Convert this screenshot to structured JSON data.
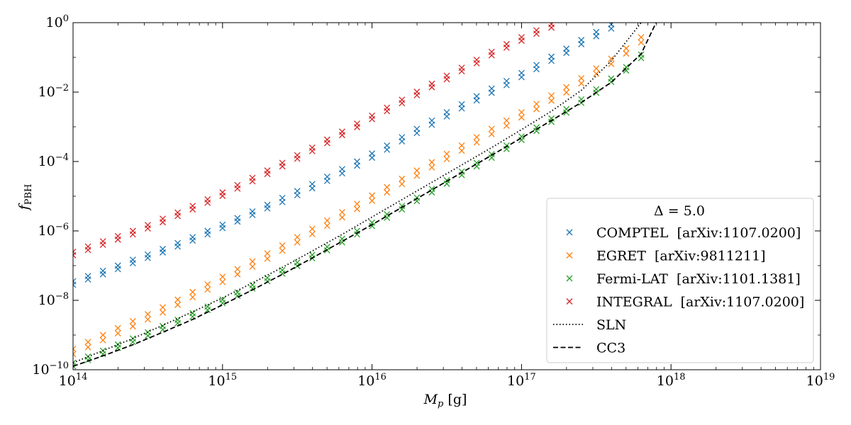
{
  "chart_data": {
    "type": "scatter",
    "xlabel": "M_p [g]",
    "ylabel": "f_PBH",
    "xscale": "log",
    "yscale": "log",
    "xlim": [
      100000000000000.0,
      1e+19
    ],
    "ylim": [
      1e-10,
      1
    ],
    "xticks": [
      {
        "value": 100000000000000.0,
        "base": "10",
        "exp": "14"
      },
      {
        "value": 1000000000000000.0,
        "base": "10",
        "exp": "15"
      },
      {
        "value": 1e+16,
        "base": "10",
        "exp": "16"
      },
      {
        "value": 1e+17,
        "base": "10",
        "exp": "17"
      },
      {
        "value": 1e+18,
        "base": "10",
        "exp": "18"
      },
      {
        "value": 1e+19,
        "base": "10",
        "exp": "19"
      }
    ],
    "yticks": [
      {
        "value": 1e-10,
        "base": "10",
        "exp": "−10"
      },
      {
        "value": 1e-08,
        "base": "10",
        "exp": "−8"
      },
      {
        "value": 1e-06,
        "base": "10",
        "exp": "−6"
      },
      {
        "value": 0.0001,
        "base": "10",
        "exp": "−4"
      },
      {
        "value": 0.01,
        "base": "10",
        "exp": "−2"
      },
      {
        "value": 1,
        "base": "10",
        "exp": "0"
      }
    ],
    "grid": false,
    "legend": {
      "placement": "lower-right",
      "title": "Δ = 5.0",
      "entries": [
        {
          "label": "COMPTEL  [arXiv:1107.0200]",
          "marker": "x",
          "color": "#1f77b4"
        },
        {
          "label": "EGRET  [arXiv:9811211]",
          "marker": "x",
          "color": "#ff7f0e"
        },
        {
          "label": "Fermi-LAT  [arXiv:1101.1381]",
          "marker": "x",
          "color": "#2ca02c"
        },
        {
          "label": "INTEGRAL  [arXiv:1107.0200]",
          "marker": "x",
          "color": "#d62728"
        },
        {
          "label": "SLN",
          "line": "dotted",
          "color": "#000000"
        },
        {
          "label": "CC3",
          "line": "dashed",
          "color": "#000000"
        }
      ]
    },
    "scatter_x_log10": [
      14.0,
      14.1,
      14.2,
      14.3,
      14.4,
      14.5,
      14.6,
      14.7,
      14.8,
      14.9,
      15.0,
      15.1,
      15.2,
      15.3,
      15.4,
      15.5,
      15.6,
      15.7,
      15.8,
      15.9,
      16.0,
      16.1,
      16.2,
      16.3,
      16.4,
      16.5,
      16.6,
      16.7,
      16.8,
      16.9,
      17.0,
      17.1,
      17.2,
      17.3,
      17.4,
      17.5,
      17.6,
      17.7,
      17.8
    ],
    "series": [
      {
        "name": "COMPTEL",
        "color": "#1f77b4",
        "y_log10_upper": [
          -7.45,
          -7.3,
          -7.15,
          -7.0,
          -6.83,
          -6.68,
          -6.52,
          -6.35,
          -6.18,
          -6.0,
          -5.82,
          -5.63,
          -5.44,
          -5.25,
          -5.05,
          -4.85,
          -4.65,
          -4.44,
          -4.22,
          -4.0,
          -3.77,
          -3.54,
          -3.3,
          -3.06,
          -2.82,
          -2.58,
          -2.35,
          -2.12,
          -1.9,
          -1.68,
          -1.45,
          -1.22,
          -0.98,
          -0.75,
          -0.5,
          -0.27,
          -0.05,
          null,
          null
        ],
        "y_log10_lower": [
          -7.55,
          -7.4,
          -7.25,
          -7.1,
          -6.93,
          -6.78,
          -6.62,
          -6.45,
          -6.28,
          -6.1,
          -5.92,
          -5.73,
          -5.54,
          -5.35,
          -5.17,
          -4.97,
          -4.77,
          -4.56,
          -4.34,
          -4.12,
          -3.89,
          -3.66,
          -3.42,
          -3.18,
          -2.94,
          -2.7,
          -2.47,
          -2.24,
          -2.02,
          -1.8,
          -1.57,
          -1.34,
          -1.1,
          -0.87,
          -0.62,
          -0.39,
          -0.17,
          null,
          null
        ]
      },
      {
        "name": "EGRET",
        "color": "#ff7f0e",
        "y_log10_upper": [
          -9.4,
          -9.2,
          -9.0,
          -8.8,
          -8.6,
          -8.4,
          -8.2,
          -7.98,
          -7.76,
          -7.54,
          -7.32,
          -7.1,
          -6.88,
          -6.65,
          -6.42,
          -6.18,
          -5.94,
          -5.7,
          -5.46,
          -5.22,
          -4.98,
          -4.74,
          -4.5,
          -4.26,
          -4.02,
          -3.78,
          -3.54,
          -3.3,
          -3.06,
          -2.82,
          -2.58,
          -2.34,
          -2.1,
          -1.86,
          -1.6,
          -1.32,
          -1.04,
          -0.74,
          -0.42
        ],
        "y_log10_lower": [
          -9.55,
          -9.35,
          -9.15,
          -8.95,
          -8.75,
          -8.55,
          -8.35,
          -8.13,
          -7.91,
          -7.69,
          -7.47,
          -7.25,
          -7.03,
          -6.8,
          -6.57,
          -6.33,
          -6.09,
          -5.85,
          -5.61,
          -5.37,
          -5.13,
          -4.89,
          -4.65,
          -4.41,
          -4.17,
          -3.93,
          -3.69,
          -3.45,
          -3.21,
          -2.97,
          -2.73,
          -2.49,
          -2.25,
          -2.01,
          -1.75,
          -1.47,
          -1.19,
          -0.89,
          -0.57
        ]
      },
      {
        "name": "Fermi-LAT",
        "color": "#2ca02c",
        "y_log10_upper": [
          -9.8,
          -9.62,
          -9.45,
          -9.27,
          -9.1,
          -8.92,
          -8.74,
          -8.56,
          -8.37,
          -8.18,
          -7.98,
          -7.77,
          -7.56,
          -7.35,
          -7.13,
          -6.91,
          -6.69,
          -6.46,
          -6.23,
          -6.0,
          -5.76,
          -5.52,
          -5.28,
          -5.04,
          -4.79,
          -4.54,
          -4.29,
          -4.04,
          -3.79,
          -3.54,
          -3.28,
          -3.02,
          -2.76,
          -2.49,
          -2.21,
          -1.92,
          -1.61,
          -1.28,
          -0.92
        ],
        "y_log10_lower": [
          -9.9,
          -9.72,
          -9.55,
          -9.37,
          -9.2,
          -9.02,
          -8.84,
          -8.66,
          -8.47,
          -8.28,
          -8.08,
          -7.87,
          -7.66,
          -7.45,
          -7.23,
          -7.01,
          -6.79,
          -6.56,
          -6.33,
          -6.1,
          -5.86,
          -5.62,
          -5.38,
          -5.14,
          -4.89,
          -4.64,
          -4.39,
          -4.14,
          -3.89,
          -3.64,
          -3.38,
          -3.12,
          -2.86,
          -2.59,
          -2.31,
          -2.02,
          -1.71,
          -1.38,
          -1.02
        ]
      },
      {
        "name": "INTEGRAL",
        "color": "#d62728",
        "y_log10_upper": [
          -6.6,
          -6.45,
          -6.3,
          -6.15,
          -6.0,
          -5.83,
          -5.65,
          -5.47,
          -5.28,
          -5.09,
          -4.89,
          -4.68,
          -4.47,
          -4.26,
          -4.04,
          -3.82,
          -3.6,
          -3.37,
          -3.14,
          -2.91,
          -2.68,
          -2.45,
          -2.22,
          -1.99,
          -1.76,
          -1.53,
          -1.3,
          -1.07,
          -0.84,
          -0.62,
          -0.42,
          -0.22,
          -0.04,
          null,
          null,
          null,
          null,
          null,
          null
        ],
        "y_log10_lower": [
          -6.7,
          -6.55,
          -6.4,
          -6.25,
          -6.1,
          -5.93,
          -5.75,
          -5.57,
          -5.38,
          -5.19,
          -4.99,
          -4.78,
          -4.57,
          -4.36,
          -4.14,
          -3.92,
          -3.7,
          -3.47,
          -3.24,
          -3.01,
          -2.78,
          -2.55,
          -2.32,
          -2.09,
          -1.86,
          -1.63,
          -1.4,
          -1.17,
          -0.94,
          -0.72,
          -0.52,
          -0.32,
          -0.14,
          null,
          null,
          null,
          null,
          null,
          null
        ]
      }
    ],
    "lines": [
      {
        "name": "SLN",
        "style": "dotted",
        "color": "#000000",
        "x_log10": [
          14.0,
          14.2,
          14.4,
          14.6,
          14.8,
          15.0,
          15.2,
          15.4,
          15.6,
          15.8,
          16.0,
          16.2,
          16.4,
          16.6,
          16.8,
          17.0,
          17.2,
          17.4,
          17.6,
          17.8
        ],
        "y_log10": [
          -9.8,
          -9.45,
          -9.1,
          -8.72,
          -8.33,
          -7.93,
          -7.5,
          -7.05,
          -6.58,
          -6.1,
          -5.6,
          -5.1,
          -4.6,
          -4.1,
          -3.6,
          -3.08,
          -2.55,
          -1.95,
          -1.1,
          0.0
        ]
      },
      {
        "name": "CC3",
        "style": "dashed",
        "color": "#000000",
        "x_log10": [
          14.0,
          14.2,
          14.4,
          14.6,
          14.8,
          15.0,
          15.2,
          15.4,
          15.6,
          15.8,
          16.0,
          16.2,
          16.4,
          16.6,
          16.8,
          17.0,
          17.2,
          17.4,
          17.6,
          17.8,
          17.9
        ],
        "y_log10": [
          -9.9,
          -9.6,
          -9.28,
          -8.92,
          -8.55,
          -8.13,
          -7.7,
          -7.25,
          -6.78,
          -6.3,
          -5.82,
          -5.32,
          -4.82,
          -4.32,
          -3.82,
          -3.32,
          -2.82,
          -2.3,
          -1.72,
          -0.9,
          0.0
        ]
      }
    ]
  }
}
